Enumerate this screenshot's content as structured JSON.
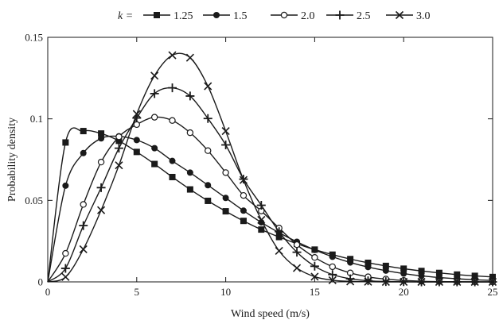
{
  "chart_data": {
    "type": "line",
    "title": "",
    "xlabel": "Wind speed (m/s)",
    "ylabel": "Probability density",
    "xlim": [
      0,
      25
    ],
    "ylim": [
      0,
      0.15
    ],
    "xticks": [
      0,
      5,
      10,
      15,
      20,
      25
    ],
    "yticks": [
      0,
      0.05,
      0.1,
      0.15
    ],
    "xtick_labels": [
      "0",
      "5",
      "10",
      "15",
      "20",
      "25"
    ],
    "ytick_labels": [
      "0",
      "0.05",
      "0.1",
      "0.15"
    ],
    "grid": false,
    "legend_placement": "top",
    "legend_prefix": "k =",
    "color": "#1a1a1a",
    "x": [
      0,
      1,
      2,
      3,
      4,
      5,
      6,
      7,
      8,
      9,
      10,
      11,
      12,
      13,
      14,
      15,
      16,
      17,
      18,
      19,
      20,
      21,
      22,
      23,
      24,
      25
    ],
    "series": [
      {
        "name": "1.25",
        "marker": "filled-square",
        "values": [
          0,
          0.0855,
          0.0925,
          0.091,
          0.0865,
          0.0797,
          0.0723,
          0.0643,
          0.0567,
          0.0497,
          0.0433,
          0.0374,
          0.0321,
          0.0275,
          0.0234,
          0.0198,
          0.0167,
          0.014,
          0.0117,
          0.0098,
          0.0081,
          0.0067,
          0.0055,
          0.0045,
          0.0037,
          0.003
        ]
      },
      {
        "name": "1.5",
        "marker": "filled-circle",
        "values": [
          0,
          0.059,
          0.079,
          0.088,
          0.0893,
          0.087,
          0.082,
          0.0742,
          0.067,
          0.0593,
          0.0515,
          0.0437,
          0.0365,
          0.0302,
          0.0246,
          0.0196,
          0.0154,
          0.0119,
          0.0091,
          0.0069,
          0.0051,
          0.0037,
          0.0027,
          0.0019,
          0.0013,
          0.0009
        ]
      },
      {
        "name": "2.0",
        "marker": "open-circle",
        "values": [
          0,
          0.0175,
          0.0475,
          0.0735,
          0.089,
          0.0965,
          0.101,
          0.099,
          0.0915,
          0.0805,
          0.067,
          0.053,
          0.0435,
          0.033,
          0.0228,
          0.015,
          0.0093,
          0.0055,
          0.0031,
          0.0017,
          0.0009,
          0.0004,
          0.0002,
          0.0001,
          0.0,
          0.0
        ]
      },
      {
        "name": "2.5",
        "marker": "plus",
        "values": [
          0,
          0.0083,
          0.0345,
          0.0578,
          0.082,
          0.1005,
          0.1155,
          0.119,
          0.114,
          0.1002,
          0.084,
          0.063,
          0.047,
          0.0308,
          0.0182,
          0.0096,
          0.0045,
          0.0019,
          0.0007,
          0.0002,
          0.0001,
          0.0,
          0.0,
          0.0,
          0.0,
          0.0
        ]
      },
      {
        "name": "3.0",
        "marker": "cross",
        "values": [
          0,
          0.003,
          0.02,
          0.044,
          0.0715,
          0.103,
          0.1265,
          0.139,
          0.1375,
          0.12,
          0.0925,
          0.0625,
          0.038,
          0.019,
          0.0085,
          0.0032,
          0.001,
          0.0003,
          0.0001,
          0.0,
          0.0,
          0.0,
          0.0,
          0.0,
          0.0,
          0.0
        ]
      }
    ]
  }
}
